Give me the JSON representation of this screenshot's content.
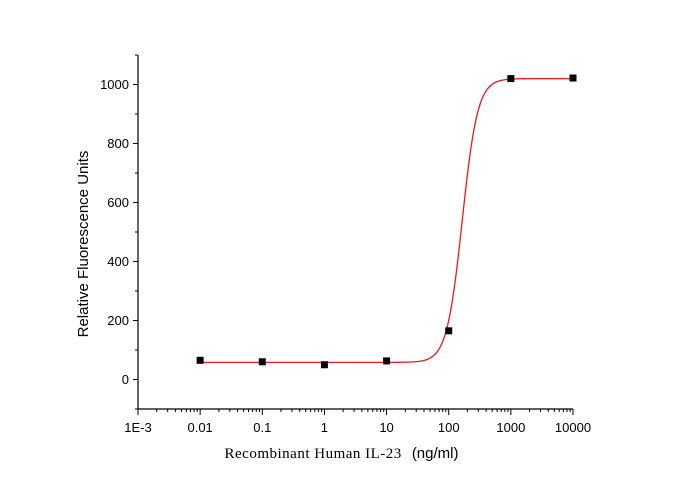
{
  "chart_data": {
    "type": "scatter",
    "xlabel_main": "Recombinant Human IL-23",
    "xlabel_unit": "(ng/ml)",
    "ylabel": "Relative Fluorescence Units",
    "x_scale": "log",
    "xlim": [
      0.001,
      10000
    ],
    "ylim": [
      -100,
      1100
    ],
    "x_ticks": [
      {
        "value": 0.001,
        "label": "1E-3"
      },
      {
        "value": 0.01,
        "label": "0.01"
      },
      {
        "value": 0.1,
        "label": "0.1"
      },
      {
        "value": 1,
        "label": "1"
      },
      {
        "value": 10,
        "label": "10"
      },
      {
        "value": 100,
        "label": "100"
      },
      {
        "value": 1000,
        "label": "1000"
      },
      {
        "value": 10000,
        "label": "10000"
      }
    ],
    "y_ticks": [
      {
        "value": 0,
        "label": "0"
      },
      {
        "value": 200,
        "label": "200"
      },
      {
        "value": 400,
        "label": "400"
      },
      {
        "value": 600,
        "label": "600"
      },
      {
        "value": 800,
        "label": "800"
      },
      {
        "value": 1000,
        "label": "1000"
      }
    ],
    "series": [
      {
        "x": [
          0.01,
          0.1,
          1,
          10,
          100,
          1000,
          10000
        ],
        "y": [
          65,
          60,
          50,
          63,
          165,
          1020,
          1022
        ],
        "marker": "square",
        "color": "#000000"
      }
    ],
    "fit": {
      "model": "4PL",
      "bottom": 58,
      "top": 1020,
      "ec50": 165,
      "hill": 3.5,
      "x_from": 0.01,
      "x_to": 10000,
      "color": "#e8191f"
    },
    "grid": false,
    "legend": "none"
  }
}
